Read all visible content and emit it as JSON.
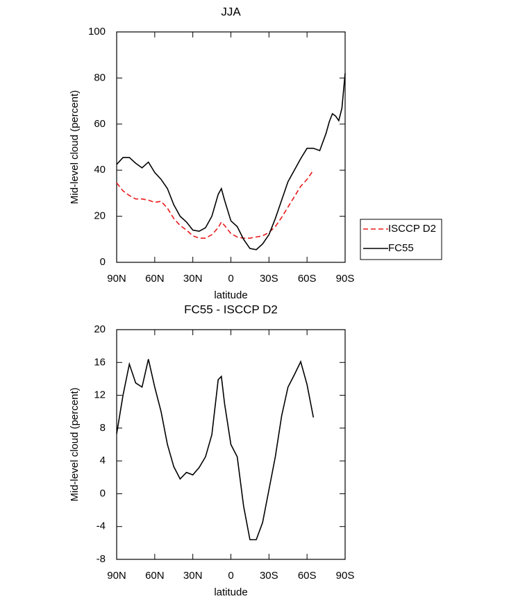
{
  "chart_data": [
    {
      "type": "line",
      "title": "JJA",
      "xlabel": "latitude",
      "ylabel": "Mid-level cloud (percent)",
      "x": [
        90,
        85,
        80,
        75,
        70,
        65,
        60,
        55,
        50,
        45,
        40,
        35,
        30,
        25,
        20,
        15,
        10,
        7.5,
        5,
        0,
        -5,
        -10,
        -15,
        -20,
        -25,
        -30,
        -35,
        -40,
        -45,
        -50,
        -55,
        -60,
        -65,
        -70,
        -75,
        -77.5,
        -80,
        -82.5,
        -85,
        -87.5,
        -90
      ],
      "series": [
        {
          "name": "ISCCP D2",
          "color": "#e8191b",
          "dash": true,
          "values": [
            34.5,
            31,
            29,
            27.5,
            27.5,
            27,
            26,
            26.5,
            23.5,
            19,
            16,
            14,
            11.5,
            10.5,
            10.5,
            12,
            15,
            17.5,
            16,
            12.5,
            11,
            10.5,
            10.5,
            11,
            11.5,
            13,
            15.5,
            19.5,
            24,
            28.5,
            33,
            36,
            40,
            null,
            null,
            null,
            null,
            null,
            null,
            null,
            null
          ]
        },
        {
          "name": "FC55",
          "color": "#000000",
          "dash": false,
          "values": [
            42.5,
            45.5,
            45.5,
            43,
            41,
            43.5,
            39,
            36,
            32,
            25,
            20,
            17.5,
            14,
            13.5,
            15,
            20,
            29.5,
            32,
            27,
            18,
            15.5,
            10,
            6,
            5.5,
            8,
            12,
            19,
            27,
            35,
            40,
            45,
            49.5,
            49.5,
            48.5,
            56,
            61,
            64.5,
            63.5,
            61.5,
            67,
            82
          ]
        }
      ],
      "xlim": [
        90,
        -90
      ],
      "ylim": [
        0,
        100
      ],
      "xticks": [
        {
          "value": 90,
          "label": "90N"
        },
        {
          "value": 60,
          "label": "60N"
        },
        {
          "value": 30,
          "label": "30N"
        },
        0,
        {
          "value": -30,
          "label": "30S"
        },
        {
          "value": -60,
          "label": "60S"
        },
        {
          "value": -90,
          "label": "90S"
        }
      ],
      "yticks": [
        0,
        20,
        40,
        60,
        80,
        100
      ],
      "legend": "right"
    },
    {
      "type": "line",
      "title": "FC55 - ISCCP D2",
      "xlabel": "latitude",
      "ylabel": "Mid-level cloud (percent)",
      "x": [
        90,
        85,
        80,
        75,
        70,
        65,
        60,
        55,
        50,
        45,
        40,
        35,
        30,
        25,
        20,
        15,
        10,
        7.5,
        5,
        0,
        -5,
        -10,
        -15,
        -20,
        -25,
        -30,
        -35,
        -40,
        -45,
        -50,
        -55,
        -60,
        -65
      ],
      "series": [
        {
          "color": "#000000",
          "dash": false,
          "values": [
            7.3,
            12,
            15.8,
            13.5,
            13,
            16.4,
            13,
            10,
            6,
            3.3,
            1.8,
            2.6,
            2.3,
            3.2,
            4.5,
            7.2,
            13.9,
            14.3,
            11,
            6,
            4.5,
            -1.5,
            -5.6,
            -5.6,
            -3.5,
            0.5,
            4.5,
            9.5,
            13,
            14.5,
            16.1,
            13.3,
            9.3
          ]
        }
      ],
      "xlim": [
        90,
        -90
      ],
      "ylim": [
        -8,
        20
      ],
      "xticks": [
        {
          "value": 90,
          "label": "90N"
        },
        {
          "value": 60,
          "label": "60N"
        },
        {
          "value": 30,
          "label": "30N"
        },
        0,
        {
          "value": -30,
          "label": "30S"
        },
        {
          "value": -60,
          "label": "60S"
        },
        {
          "value": -90,
          "label": "90S"
        }
      ],
      "yticks": [
        -8,
        -4,
        0,
        4,
        8,
        12,
        16,
        20
      ]
    }
  ]
}
